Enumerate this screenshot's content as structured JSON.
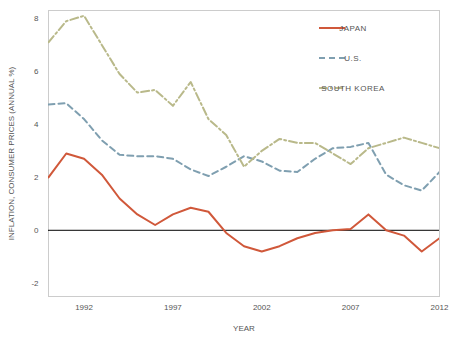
{
  "chart_data": {
    "type": "line",
    "x_label": "YEAR",
    "y_label": "INFLATION, CONSUMER PRICES (ANNUAL %)",
    "x": [
      1990,
      1991,
      1992,
      1993,
      1994,
      1995,
      1996,
      1997,
      1998,
      1999,
      2000,
      2001,
      2002,
      2003,
      2004,
      2005,
      2006,
      2007,
      2008,
      2009,
      2010,
      2011,
      2012
    ],
    "series": [
      {
        "name": "JAPAN",
        "color": "#d0583a",
        "line_style": "solid",
        "values": [
          2.0,
          2.9,
          2.7,
          2.1,
          1.2,
          0.6,
          0.2,
          0.6,
          0.85,
          0.7,
          -0.1,
          -0.6,
          -0.8,
          -0.6,
          -0.3,
          -0.1,
          0.0,
          0.05,
          0.6,
          0.0,
          -0.2,
          -0.8,
          -0.3
        ]
      },
      {
        "name": "U.S.",
        "color": "#7f9fb0",
        "line_style": "dashed",
        "values": [
          4.75,
          4.8,
          4.2,
          3.4,
          2.85,
          2.8,
          2.8,
          2.7,
          2.3,
          2.05,
          2.4,
          2.8,
          2.6,
          2.25,
          2.2,
          2.7,
          3.1,
          3.15,
          3.3,
          2.1,
          1.7,
          1.5,
          2.2
        ]
      },
      {
        "name": "SOUTH KOREA",
        "color": "#b9b98a",
        "line_style": "dashdot",
        "values": [
          7.1,
          7.9,
          8.1,
          7.0,
          5.9,
          5.2,
          5.3,
          4.7,
          5.6,
          4.2,
          3.6,
          2.4,
          3.0,
          3.45,
          3.3,
          3.3,
          2.9,
          2.5,
          3.1,
          3.3,
          3.5,
          3.3,
          3.1
        ]
      }
    ],
    "xlim": [
      1990,
      2012
    ],
    "xticks": [
      1992,
      1997,
      2002,
      2007,
      2012
    ],
    "ylim": [
      -2.5,
      8.3
    ],
    "yticks": [
      -2,
      0,
      2,
      4,
      6,
      8
    ],
    "legend": "top-right",
    "grid": false
  }
}
